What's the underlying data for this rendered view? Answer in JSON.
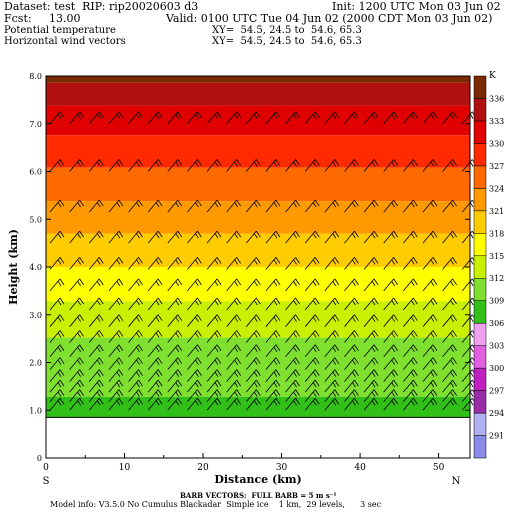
{
  "header": {
    "dataset": "Dataset: test  RIP: rip20020603 d3",
    "init": "Init: 1200 UTC Mon 03 Jun 02",
    "fcst": "Fcst:     13.00",
    "valid": "Valid: 0100 UTC Tue 04 Jun 02 (2000 CDT Mon 03 Jun 02)",
    "field1": "Potential temperature",
    "xy1": "XY=  54.5, 24.5 to  54.6, 65.3",
    "field2": "Horizontal wind vectors",
    "xy2": "XY=  54.5, 24.5 to  54.6, 65.3"
  },
  "footer": {
    "barb_note": "BARB VECTORS:  FULL BARB = 5 m s⁻¹",
    "model_info": "Model info: V3.5.0 No Cumulus Blackadar  Simple ice    1 km,  29 levels,      3 sec"
  },
  "chart_data": {
    "type": "heatmap",
    "xlabel": "Distance (km)",
    "ylabel": "Height (km)",
    "xlim": [
      0,
      54
    ],
    "ylim": [
      0,
      8
    ],
    "xticks": [
      "0",
      "10",
      "20",
      "30",
      "40",
      "50"
    ],
    "yticks": [
      "0",
      "1.0",
      "2.0",
      "3.0",
      "4.0",
      "5.0",
      "6.0",
      "7.0",
      "8.0"
    ],
    "left_end_label": "S",
    "right_end_label": "N",
    "terrain_height_km": 0.85,
    "colorbar": {
      "unit": "K",
      "levels": [
        291,
        294,
        297,
        300,
        303,
        306,
        309,
        312,
        315,
        318,
        321,
        324,
        327,
        330,
        333,
        336
      ],
      "colors": [
        "#8a8ae8",
        "#b0b0f0",
        "#9a2ea8",
        "#c020c0",
        "#e060e0",
        "#f0a0f0",
        "#30c018",
        "#7fe030",
        "#c8f000",
        "#ffff00",
        "#ffcc00",
        "#ff9900",
        "#ff6a00",
        "#ff2a00",
        "#e00000",
        "#b01010",
        "#7a2a00"
      ]
    },
    "theta_profile": [
      [
        0.85,
        308
      ],
      [
        1.5,
        309.5
      ],
      [
        2.0,
        310.5
      ],
      [
        2.4,
        311.5
      ],
      [
        2.8,
        313
      ],
      [
        3.3,
        315
      ],
      [
        3.9,
        317.5
      ],
      [
        4.6,
        320.5
      ],
      [
        5.4,
        324
      ],
      [
        6.2,
        327.5
      ],
      [
        7.0,
        331
      ],
      [
        7.6,
        334
      ],
      [
        8.0,
        337
      ]
    ],
    "barb_levels_km": [
      1.0,
      1.18,
      1.38,
      1.6,
      1.85,
      2.12,
      2.42,
      2.75,
      3.1,
      3.5,
      3.95,
      4.5,
      5.15,
      6.0,
      7.0
    ],
    "barb_x_km": [
      0,
      2.5,
      5,
      7.5,
      10,
      12.5,
      15,
      17.5,
      20,
      22.5,
      25,
      27.5,
      30,
      32.5,
      35,
      37.5,
      40,
      42.5,
      45,
      47.5,
      50,
      52.5
    ],
    "barb_note": "full barb = 5 m/s"
  }
}
